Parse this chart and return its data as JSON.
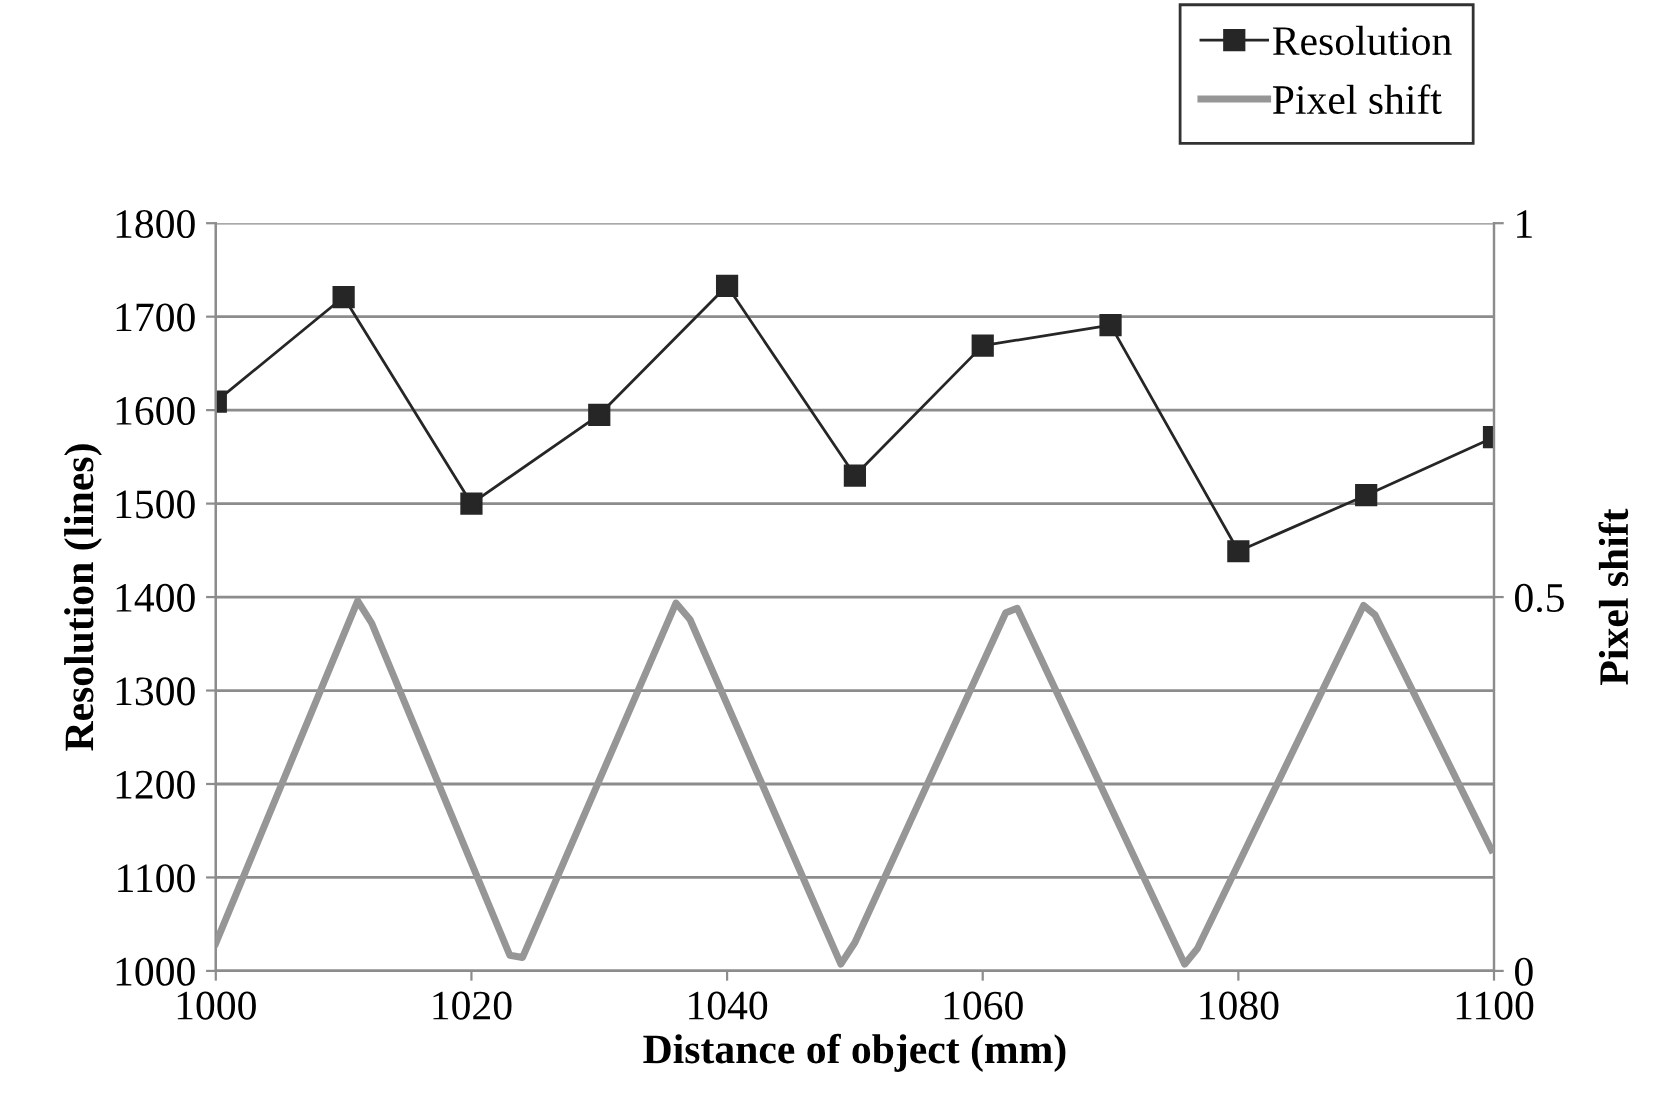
{
  "chart_data": {
    "type": "line",
    "xlabel": "Distance of object (mm)",
    "ylabel": "Resolution (lines)",
    "y2label": "Pixel shift",
    "xlim": [
      1000,
      1100
    ],
    "xticks": [
      1000,
      1020,
      1040,
      1060,
      1080,
      1100
    ],
    "ylim": [
      1000,
      1800
    ],
    "yticks": [
      1000,
      1100,
      1200,
      1300,
      1400,
      1500,
      1600,
      1700,
      1800
    ],
    "y2lim": [
      0,
      1
    ],
    "y2ticks": [
      0,
      0.5,
      1
    ],
    "grid": "y",
    "legend": "top right",
    "series": [
      {
        "name": "Resolution",
        "color": "#262626",
        "marker": "square",
        "x": [
          1000,
          1010,
          1020,
          1030,
          1040,
          1050,
          1060,
          1070,
          1080,
          1090,
          1100
        ],
        "values": [
          1609,
          1721,
          1500,
          1595,
          1733,
          1530,
          1669,
          1691,
          1449,
          1509,
          1571
        ]
      },
      {
        "name": "Pixel shift",
        "color": "#969696",
        "marker": "none",
        "axis": "y2",
        "x": [
          1000,
          1011.1,
          1012.2,
          1023.0,
          1024.0,
          1036.0,
          1037.1,
          1048.9,
          1050.0,
          1061.8,
          1062.7,
          1075.8,
          1076.8,
          1089.8,
          1090.7,
          1099.8
        ],
        "values": [
          0.037,
          0.495,
          0.465,
          0.021,
          0.018,
          0.492,
          0.47,
          0.009,
          0.038,
          0.479,
          0.485,
          0.009,
          0.03,
          0.489,
          0.476,
          0.162
        ]
      }
    ]
  }
}
